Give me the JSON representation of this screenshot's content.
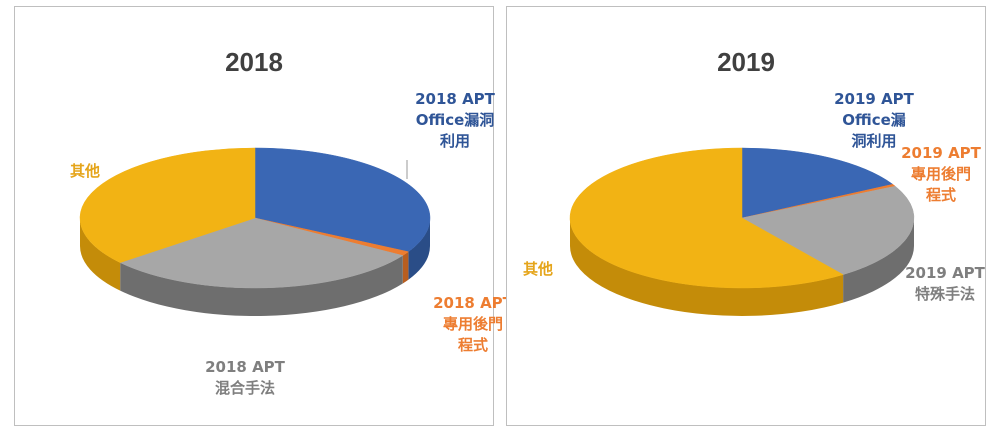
{
  "chart_data": [
    {
      "type": "pie",
      "title": "2018",
      "slices": [
        {
          "name_lines": [
            "2018 APT",
            "Office漏洞",
            "利用"
          ],
          "value": 33,
          "color": "#3a67b4",
          "side": "#2a4d87",
          "label_color": "#2f5597"
        },
        {
          "name_lines": [
            "2018 APT",
            "專用後門",
            "程式"
          ],
          "value": 1,
          "color": "#ed7d31",
          "side": "#b85e20",
          "label_color": "#ed7d31"
        },
        {
          "name_lines": [
            "2018 APT",
            "混合手法"
          ],
          "value": 30,
          "color": "#a7a7a7",
          "side": "#6e6e6e",
          "label_color": "#7f7f7f"
        },
        {
          "name_lines": [
            "其他"
          ],
          "value": 36,
          "color": "#f2b314",
          "side": "#c48c09",
          "label_color": "#e5a51b"
        }
      ]
    },
    {
      "type": "pie",
      "title": "2019",
      "slices": [
        {
          "name_lines": [
            "2019 APT",
            "Office漏",
            "洞利用"
          ],
          "value": 17,
          "color": "#3a67b4",
          "side": "#2a4d87",
          "label_color": "#2f5597"
        },
        {
          "name_lines": [
            "2019 APT",
            "專用後門",
            "程式"
          ],
          "value": 0.5,
          "color": "#ed7d31",
          "side": "#b85e20",
          "label_color": "#ed7d31"
        },
        {
          "name_lines": [
            "2019 APT",
            "特殊手法"
          ],
          "value": 22.5,
          "color": "#a7a7a7",
          "side": "#6e6e6e",
          "label_color": "#7f7f7f"
        },
        {
          "name_lines": [
            "其他"
          ],
          "value": 60,
          "color": "#f2b314",
          "side": "#c48c09",
          "label_color": "#e5a51b"
        }
      ]
    }
  ]
}
